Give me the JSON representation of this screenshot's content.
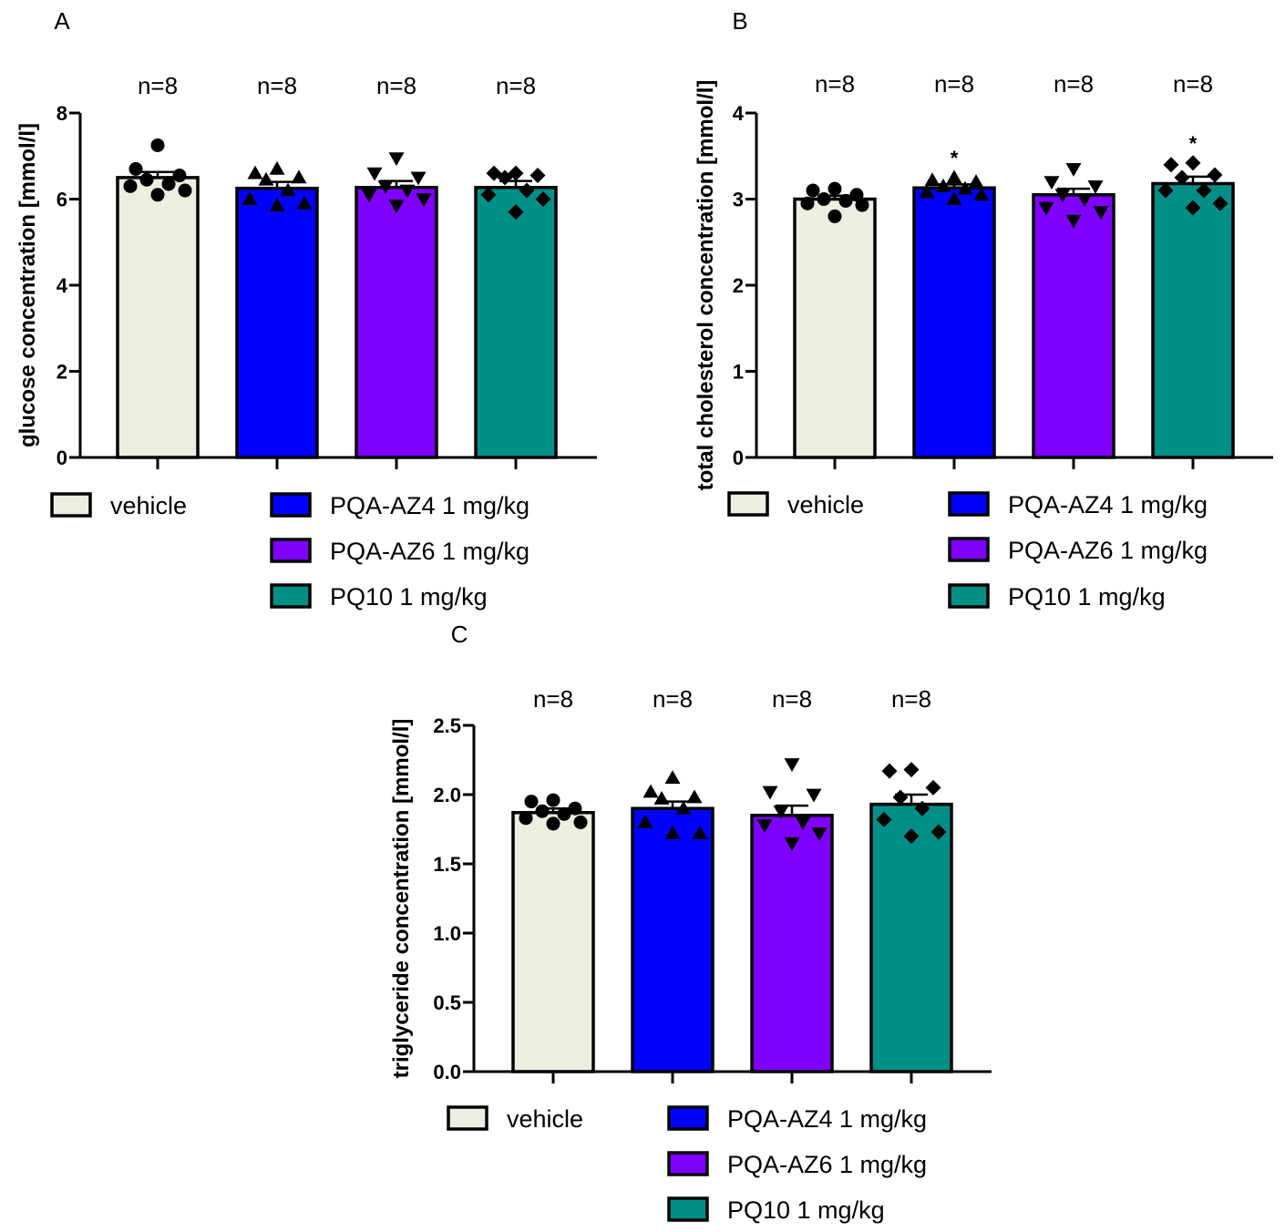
{
  "chart_data": [
    {
      "panel": "A",
      "type": "bar",
      "ylabel": "glucose concentration [mmol/l]",
      "ylim": [
        0,
        8
      ],
      "yticks": [
        "0",
        "2",
        "4",
        "6",
        "8"
      ],
      "ytick_values": [
        0,
        2,
        4,
        6,
        8
      ],
      "n_labels": [
        "n=8",
        "n=8",
        "n=8",
        "n=8"
      ],
      "series": [
        {
          "name": "vehicle",
          "mean": 6.5,
          "sem": 0.13,
          "marker": "circle",
          "points": [
            7.25,
            6.7,
            6.55,
            6.45,
            6.35,
            6.3,
            6.2,
            6.1
          ],
          "significance": ""
        },
        {
          "name": "PQA-AZ4 1 mg/kg",
          "mean": 6.25,
          "sem": 0.15,
          "marker": "triangle-up",
          "points": [
            6.7,
            6.6,
            6.5,
            6.45,
            6.2,
            6.0,
            5.9,
            5.85
          ],
          "significance": ""
        },
        {
          "name": "PQA-AZ6 1 mg/kg",
          "mean": 6.27,
          "sem": 0.15,
          "marker": "triangle-down",
          "points": [
            6.95,
            6.6,
            6.5,
            6.3,
            6.2,
            6.1,
            6.0,
            5.85
          ],
          "significance": ""
        },
        {
          "name": "PQ10 1 mg/kg",
          "mean": 6.27,
          "sem": 0.15,
          "marker": "diamond",
          "points": [
            6.6,
            6.6,
            6.55,
            6.5,
            6.2,
            6.1,
            6.0,
            5.7
          ],
          "significance": ""
        }
      ],
      "legend": [
        "vehicle",
        "PQA-AZ4 1 mg/kg",
        "PQA-AZ6 1 mg/kg",
        "PQ10 1 mg/kg"
      ]
    },
    {
      "panel": "B",
      "type": "bar",
      "ylabel": "total cholesterol concentration [mmol/l]",
      "ylim": [
        0,
        4
      ],
      "yticks": [
        "0",
        "1",
        "2",
        "3",
        "4"
      ],
      "ytick_values": [
        0,
        1,
        2,
        3,
        4
      ],
      "n_labels": [
        "n=8",
        "n=8",
        "n=8",
        "n=8"
      ],
      "series": [
        {
          "name": "vehicle",
          "mean": 3.0,
          "sem": 0.04,
          "marker": "circle",
          "points": [
            3.12,
            3.1,
            3.05,
            3.0,
            2.98,
            2.95,
            2.93,
            2.8
          ],
          "significance": ""
        },
        {
          "name": "PQA-AZ4 1 mg/kg",
          "mean": 3.13,
          "sem": 0.04,
          "marker": "triangle-up",
          "points": [
            3.25,
            3.22,
            3.2,
            3.15,
            3.12,
            3.08,
            3.05,
            3.0
          ],
          "significance": "*"
        },
        {
          "name": "PQA-AZ6 1 mg/kg",
          "mean": 3.05,
          "sem": 0.07,
          "marker": "triangle-down",
          "points": [
            3.35,
            3.2,
            3.15,
            3.05,
            3.0,
            2.9,
            2.85,
            2.75
          ],
          "significance": ""
        },
        {
          "name": "PQ10 1 mg/kg",
          "mean": 3.18,
          "sem": 0.08,
          "marker": "diamond",
          "points": [
            3.42,
            3.4,
            3.28,
            3.25,
            3.1,
            3.1,
            2.95,
            2.9
          ],
          "significance": "*"
        }
      ],
      "legend": [
        "vehicle",
        "PQA-AZ4 1 mg/kg",
        "PQA-AZ6 1 mg/kg",
        "PQ10 1 mg/kg"
      ]
    },
    {
      "panel": "C",
      "type": "bar",
      "ylabel": "triglyceride concentration [mmol/l]",
      "ylim": [
        0,
        2.5
      ],
      "yticks": [
        "0.0",
        "0.5",
        "1.0",
        "1.5",
        "2.0",
        "2.5"
      ],
      "ytick_values": [
        0,
        0.5,
        1.0,
        1.5,
        2.0,
        2.5
      ],
      "n_labels": [
        "n=8",
        "n=8",
        "n=8",
        "n=8"
      ],
      "series": [
        {
          "name": "vehicle",
          "mean": 1.87,
          "sem": 0.03,
          "marker": "circle",
          "points": [
            1.96,
            1.95,
            1.9,
            1.88,
            1.86,
            1.83,
            1.8,
            1.79
          ],
          "significance": ""
        },
        {
          "name": "PQA-AZ4 1 mg/kg",
          "mean": 1.9,
          "sem": 0.05,
          "marker": "triangle-up",
          "points": [
            2.12,
            2.02,
            1.98,
            1.97,
            1.9,
            1.8,
            1.72,
            1.72
          ],
          "significance": ""
        },
        {
          "name": "PQA-AZ6 1 mg/kg",
          "mean": 1.85,
          "sem": 0.07,
          "marker": "triangle-down",
          "points": [
            2.22,
            2.02,
            2.0,
            1.88,
            1.8,
            1.78,
            1.72,
            1.65
          ],
          "significance": ""
        },
        {
          "name": "PQ10 1 mg/kg",
          "mean": 1.93,
          "sem": 0.07,
          "marker": "diamond",
          "points": [
            2.18,
            2.17,
            2.05,
            1.98,
            1.9,
            1.82,
            1.73,
            1.7
          ],
          "significance": ""
        }
      ],
      "legend": [
        "vehicle",
        "PQA-AZ4 1 mg/kg",
        "PQA-AZ6 1 mg/kg",
        "PQ10 1 mg/kg"
      ]
    }
  ],
  "colors": {
    "vehicle": "#eeeee0",
    "PQA-AZ4 1 mg/kg": "#0000ff",
    "PQA-AZ6 1 mg/kg": "#8000ff",
    "PQ10 1 mg/kg": "#008f88"
  }
}
